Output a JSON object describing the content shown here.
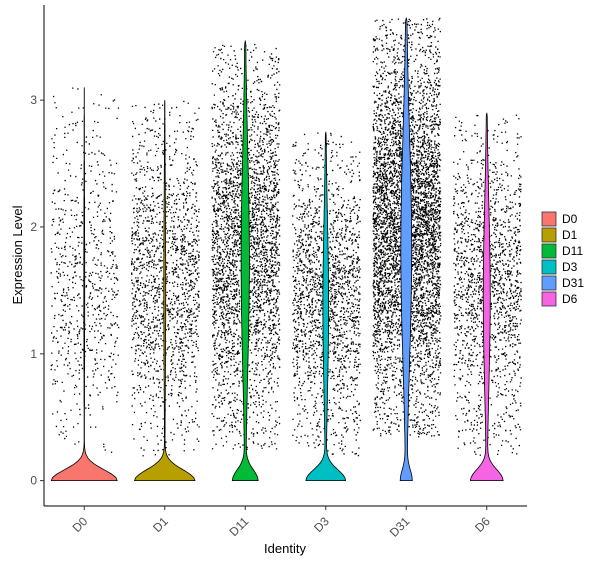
{
  "chart_data": {
    "type": "violin",
    "xlabel": "Identity",
    "ylabel": "Expression Level",
    "categories": [
      "D0",
      "D1",
      "D11",
      "D3",
      "D31",
      "D6"
    ],
    "ylim": [
      -0.2,
      3.75
    ],
    "yticks": [
      0,
      1,
      2,
      3
    ],
    "colors": {
      "D0": "#F8766D",
      "D1": "#B79F00",
      "D11": "#00BA38",
      "D3": "#00BFC4",
      "D31": "#619CFF",
      "D6": "#F564E3"
    },
    "series": [
      {
        "name": "D0",
        "zero_fraction": 0.93,
        "max": 3.1,
        "jitter_points": 700,
        "points_range": [
          0.2,
          3.1
        ]
      },
      {
        "name": "D1",
        "zero_fraction": 0.85,
        "max": 3.0,
        "jitter_points": 1600,
        "points_range": [
          0.2,
          3.0
        ]
      },
      {
        "name": "D11",
        "zero_fraction": 0.35,
        "max": 3.47,
        "jitter_points": 3200,
        "points_range": [
          0.25,
          3.45
        ]
      },
      {
        "name": "D3",
        "zero_fraction": 0.55,
        "max": 2.75,
        "jitter_points": 1800,
        "points_range": [
          0.2,
          2.75
        ]
      },
      {
        "name": "D31",
        "zero_fraction": 0.15,
        "max": 3.65,
        "jitter_points": 5200,
        "points_range": [
          0.35,
          3.65
        ]
      },
      {
        "name": "D6",
        "zero_fraction": 0.45,
        "max": 2.9,
        "jitter_points": 1600,
        "points_range": [
          0.2,
          2.9
        ]
      }
    ],
    "legend": {
      "position": "right",
      "entries": [
        "D0",
        "D1",
        "D11",
        "D3",
        "D31",
        "D6"
      ]
    },
    "grid": false
  }
}
